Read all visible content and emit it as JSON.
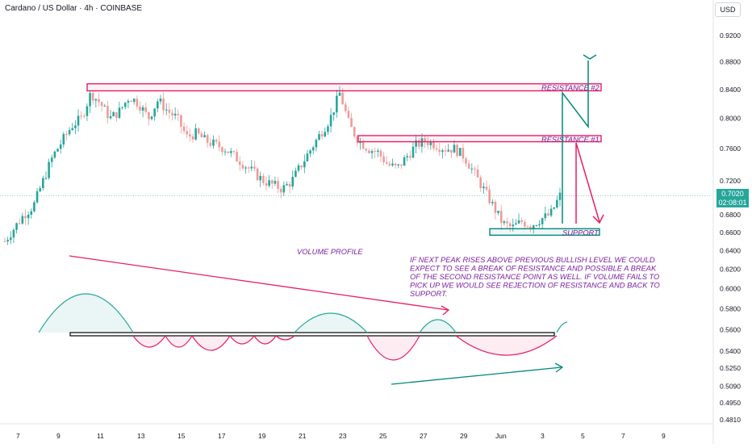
{
  "header": {
    "title": "Cardano / US Dollar · 4h · COINBASE",
    "currency_button": "USD"
  },
  "price_badge": {
    "price": "0.7020",
    "countdown": "02:08:01",
    "color": "#26a69a"
  },
  "colors": {
    "up": "#26a69a",
    "down": "#ef9a9a",
    "annotation_pink": "#e91e63",
    "annotation_teal": "#00897b",
    "annotation_text": "#7b1fa2"
  },
  "chart_data": {
    "type": "candlestick",
    "title": "Cardano / US Dollar · 4h · COINBASE",
    "y_axis": {
      "scale": "log",
      "ticks": [
        0.481,
        0.495,
        0.509,
        0.525,
        0.54,
        0.56,
        0.58,
        0.6,
        0.62,
        0.64,
        0.66,
        0.68,
        0.72,
        0.76,
        0.8,
        0.84,
        0.88,
        0.92
      ],
      "tick_labels": [
        "0.4810",
        "0.4950",
        "0.5090",
        "0.5250",
        "0.5400",
        "0.5600",
        "0.5800",
        "0.6000",
        "0.6200",
        "0.6400",
        "0.6600",
        "0.6800",
        "0.7200",
        "0.7600",
        "0.8000",
        "0.8400",
        "0.8800",
        "0.9200"
      ]
    },
    "x_axis": {
      "tick_labels": [
        "7",
        "9",
        "11",
        "13",
        "15",
        "17",
        "19",
        "21",
        "23",
        "25",
        "27",
        "29",
        "Jun",
        "3",
        "5",
        "7",
        "9"
      ]
    },
    "current_price": 0.702,
    "resistance_levels": [
      {
        "label": "RESISTANCE #2",
        "low": 0.838,
        "high": 0.848
      },
      {
        "label": "RESISTANCE #1",
        "low": 0.769,
        "high": 0.777
      }
    ],
    "support": {
      "label": "SUPPORT",
      "low": 0.657,
      "high": 0.664
    },
    "path_close": [
      0.65,
      0.665,
      0.68,
      0.69,
      0.72,
      0.75,
      0.77,
      0.79,
      0.8,
      0.835,
      0.82,
      0.8,
      0.81,
      0.83,
      0.82,
      0.8,
      0.825,
      0.81,
      0.8,
      0.775,
      0.78,
      0.77,
      0.765,
      0.76,
      0.75,
      0.74,
      0.73,
      0.72,
      0.715,
      0.71,
      0.72,
      0.74,
      0.76,
      0.78,
      0.8,
      0.835,
      0.79,
      0.77,
      0.76,
      0.755,
      0.74,
      0.735,
      0.75,
      0.765,
      0.77,
      0.765,
      0.76,
      0.76,
      0.75,
      0.73,
      0.71,
      0.69,
      0.67,
      0.665,
      0.672,
      0.668,
      0.675,
      0.68,
      0.702
    ],
    "volume_profile_label": "VOLUME PROFILE",
    "note": "IF NEXT PEAK RISES ABOVE PREVIOUS BULLISH LEVEL WE COULD EXPECT TO SEE A BREAK OF RESISTANCE AND POSSIBLE A BREAK OF THE SECOND RESISTANCE POINT AS WELL. IF VOLUME FAILS TO PICK UP WE WOULD SEE REJECTION OF RESISTANCE AND BACK TO SUPPORT."
  }
}
